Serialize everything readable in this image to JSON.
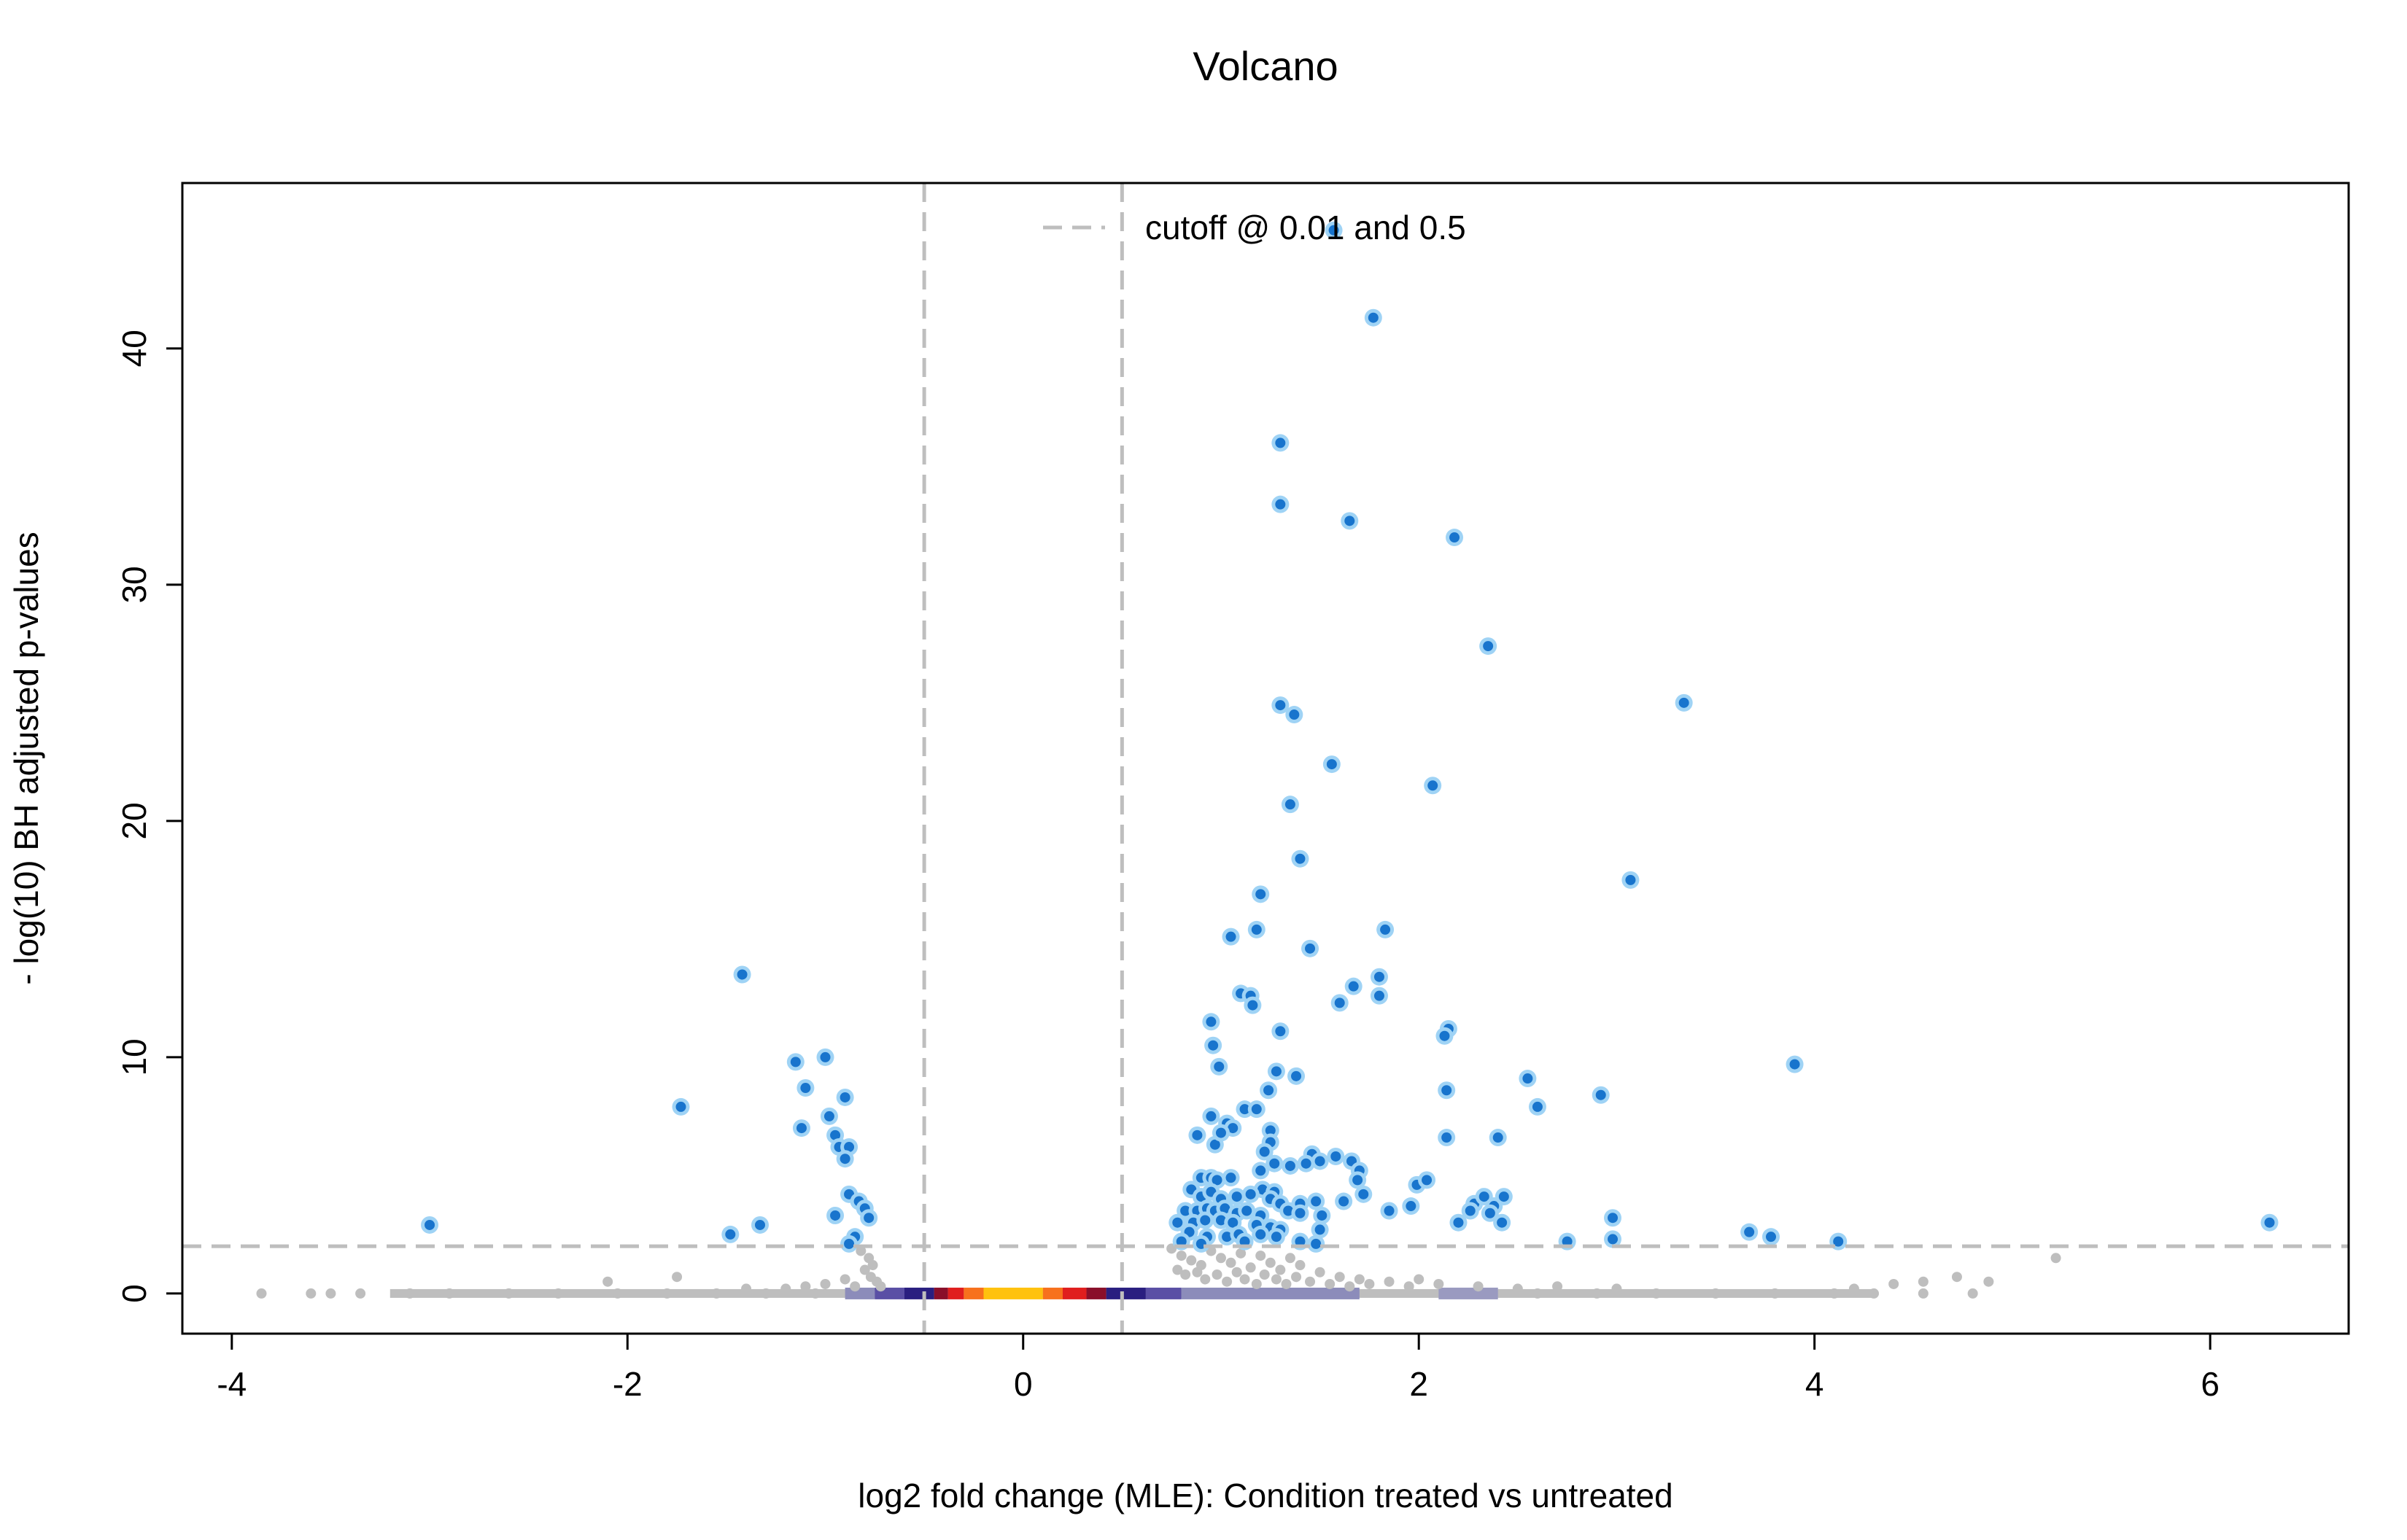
{
  "chart_data": {
    "type": "scatter",
    "title": "Volcano",
    "xlabel": "log2 fold change (MLE): Condition treated vs untreated",
    "ylabel": "- log(10) BH adjusted p-values",
    "xlim": [
      -4.25,
      6.7
    ],
    "ylim": [
      -1.7,
      47.0
    ],
    "xticks": [
      -4,
      -2,
      0,
      2,
      4,
      6
    ],
    "yticks": [
      0,
      10,
      20,
      30,
      40
    ],
    "x_tick_labels": [
      "-4",
      "-2",
      "0",
      "2",
      "4",
      "6"
    ],
    "y_tick_labels": [
      "0",
      "10",
      "20",
      "30",
      "40"
    ],
    "grid": false,
    "legend": {
      "position": "top",
      "entries": [
        {
          "label": "cutoff @ 0.01 and 0.5",
          "style": "dashed",
          "color": "#bebebe"
        }
      ]
    },
    "cutoffs": {
      "padj": 0.01,
      "y_line": 2.0,
      "lfc": [
        -0.5,
        0.5
      ]
    },
    "colors": {
      "significant_fill": "#1874cd",
      "significant_ring": "#9fd3f5",
      "nonsignificant": "#bebebe",
      "cutoff_line": "#bebebe",
      "density_low": "#8c8cba",
      "density_mid": "#3a2f8f",
      "density_high_red": "#c4161c",
      "density_peak": "#ffc20e"
    },
    "density_strip": [
      {
        "x0": -0.9,
        "x1": -0.75,
        "color": "#8c8cba"
      },
      {
        "x0": -0.75,
        "x1": -0.6,
        "color": "#5a4fa5"
      },
      {
        "x0": -0.6,
        "x1": -0.45,
        "color": "#2a1f80"
      },
      {
        "x0": -0.45,
        "x1": -0.38,
        "color": "#8a0f2a"
      },
      {
        "x0": -0.38,
        "x1": -0.3,
        "color": "#e01e1e"
      },
      {
        "x0": -0.3,
        "x1": -0.2,
        "color": "#f7711d"
      },
      {
        "x0": -0.2,
        "x1": 0.1,
        "color": "#ffc20e"
      },
      {
        "x0": 0.1,
        "x1": 0.2,
        "color": "#f7711d"
      },
      {
        "x0": 0.2,
        "x1": 0.32,
        "color": "#e01e1e"
      },
      {
        "x0": 0.32,
        "x1": 0.42,
        "color": "#8a0f2a"
      },
      {
        "x0": 0.42,
        "x1": 0.62,
        "color": "#2a1f80"
      },
      {
        "x0": 0.62,
        "x1": 0.8,
        "color": "#5a4fa5"
      },
      {
        "x0": 0.8,
        "x1": 1.7,
        "color": "#8c8cba"
      },
      {
        "x0": 2.1,
        "x1": 2.4,
        "color": "#9a9ac0"
      }
    ],
    "significant_points": [
      [
        -3.0,
        2.9
      ],
      [
        -1.73,
        7.9
      ],
      [
        -1.42,
        13.5
      ],
      [
        -1.48,
        2.5
      ],
      [
        -1.33,
        2.9
      ],
      [
        -1.15,
        9.8
      ],
      [
        -1.1,
        8.7
      ],
      [
        -1.12,
        7.0
      ],
      [
        -1.0,
        10.0
      ],
      [
        -0.98,
        7.5
      ],
      [
        -0.95,
        6.7
      ],
      [
        -0.9,
        8.3
      ],
      [
        -0.93,
        6.2
      ],
      [
        -0.88,
        6.2
      ],
      [
        -0.9,
        5.7
      ],
      [
        -0.88,
        4.2
      ],
      [
        -0.83,
        3.9
      ],
      [
        -0.95,
        3.3
      ],
      [
        -0.8,
        3.6
      ],
      [
        -0.85,
        2.4
      ],
      [
        -0.78,
        3.2
      ],
      [
        -0.88,
        2.1
      ],
      [
        1.3,
        36.0
      ],
      [
        1.3,
        33.4
      ],
      [
        1.57,
        45.0
      ],
      [
        1.77,
        41.3
      ],
      [
        1.65,
        32.7
      ],
      [
        2.18,
        32.0
      ],
      [
        2.35,
        27.4
      ],
      [
        1.3,
        24.9
      ],
      [
        1.37,
        24.5
      ],
      [
        3.34,
        25.0
      ],
      [
        1.56,
        22.4
      ],
      [
        2.07,
        21.5
      ],
      [
        1.35,
        20.7
      ],
      [
        1.4,
        18.4
      ],
      [
        3.07,
        17.5
      ],
      [
        1.2,
        16.9
      ],
      [
        1.18,
        15.4
      ],
      [
        1.05,
        15.1
      ],
      [
        1.83,
        15.4
      ],
      [
        1.45,
        14.6
      ],
      [
        1.8,
        13.4
      ],
      [
        1.67,
        13.0
      ],
      [
        1.1,
        12.7
      ],
      [
        1.15,
        12.6
      ],
      [
        1.16,
        12.2
      ],
      [
        1.6,
        12.3
      ],
      [
        1.8,
        12.6
      ],
      [
        0.95,
        11.5
      ],
      [
        1.3,
        11.1
      ],
      [
        2.15,
        11.2
      ],
      [
        2.13,
        10.9
      ],
      [
        0.96,
        10.5
      ],
      [
        0.99,
        9.6
      ],
      [
        1.28,
        9.4
      ],
      [
        1.38,
        9.2
      ],
      [
        1.24,
        8.6
      ],
      [
        2.14,
        8.6
      ],
      [
        2.55,
        9.1
      ],
      [
        2.92,
        8.4
      ],
      [
        3.9,
        9.7
      ],
      [
        2.6,
        7.9
      ],
      [
        1.12,
        7.8
      ],
      [
        1.18,
        7.8
      ],
      [
        0.95,
        7.5
      ],
      [
        1.03,
        7.2
      ],
      [
        1.06,
        7.0
      ],
      [
        1.25,
        6.9
      ],
      [
        0.88,
        6.7
      ],
      [
        1.25,
        6.4
      ],
      [
        0.97,
        6.3
      ],
      [
        2.14,
        6.6
      ],
      [
        2.4,
        6.6
      ],
      [
        1.0,
        6.8
      ],
      [
        1.22,
        6.0
      ],
      [
        1.46,
        5.9
      ],
      [
        1.58,
        5.8
      ],
      [
        1.27,
        5.5
      ],
      [
        1.35,
        5.4
      ],
      [
        1.43,
        5.5
      ],
      [
        1.5,
        5.6
      ],
      [
        1.66,
        5.6
      ],
      [
        1.7,
        5.2
      ],
      [
        1.2,
        5.2
      ],
      [
        0.9,
        4.9
      ],
      [
        0.95,
        4.9
      ],
      [
        0.98,
        4.8
      ],
      [
        1.05,
        4.9
      ],
      [
        1.21,
        4.4
      ],
      [
        1.27,
        4.3
      ],
      [
        1.69,
        4.8
      ],
      [
        1.99,
        4.6
      ],
      [
        2.04,
        4.8
      ],
      [
        0.85,
        4.4
      ],
      [
        0.9,
        4.1
      ],
      [
        0.95,
        4.3
      ],
      [
        1.0,
        4.0
      ],
      [
        1.08,
        4.1
      ],
      [
        1.15,
        4.2
      ],
      [
        1.25,
        4.0
      ],
      [
        1.3,
        3.8
      ],
      [
        1.4,
        3.8
      ],
      [
        1.48,
        3.9
      ],
      [
        1.62,
        3.9
      ],
      [
        1.72,
        4.2
      ],
      [
        2.28,
        3.8
      ],
      [
        2.33,
        4.1
      ],
      [
        2.38,
        3.7
      ],
      [
        2.43,
        4.1
      ],
      [
        0.82,
        3.5
      ],
      [
        0.88,
        3.5
      ],
      [
        0.93,
        3.6
      ],
      [
        0.97,
        3.5
      ],
      [
        1.02,
        3.6
      ],
      [
        1.08,
        3.4
      ],
      [
        1.13,
        3.5
      ],
      [
        1.2,
        3.3
      ],
      [
        1.34,
        3.5
      ],
      [
        1.4,
        3.4
      ],
      [
        1.51,
        3.3
      ],
      [
        1.85,
        3.5
      ],
      [
        1.96,
        3.7
      ],
      [
        2.26,
        3.5
      ],
      [
        2.36,
        3.4
      ],
      [
        0.78,
        3.0
      ],
      [
        0.86,
        3.0
      ],
      [
        0.92,
        3.1
      ],
      [
        1.0,
        3.1
      ],
      [
        1.06,
        3.0
      ],
      [
        1.18,
        2.9
      ],
      [
        1.25,
        2.8
      ],
      [
        1.3,
        2.7
      ],
      [
        2.2,
        3.0
      ],
      [
        2.42,
        3.0
      ],
      [
        2.98,
        3.2
      ],
      [
        6.3,
        3.0
      ],
      [
        0.84,
        2.6
      ],
      [
        0.93,
        2.4
      ],
      [
        1.03,
        2.4
      ],
      [
        1.09,
        2.5
      ],
      [
        1.2,
        2.5
      ],
      [
        1.28,
        2.4
      ],
      [
        1.5,
        2.7
      ],
      [
        2.75,
        2.2
      ],
      [
        2.98,
        2.3
      ],
      [
        3.67,
        2.6
      ],
      [
        3.78,
        2.4
      ],
      [
        4.12,
        2.2
      ],
      [
        0.8,
        2.2
      ],
      [
        0.9,
        2.1
      ],
      [
        1.12,
        2.2
      ],
      [
        1.4,
        2.2
      ],
      [
        1.48,
        2.1
      ]
    ],
    "nonsignificant_points": [
      [
        -0.82,
        1.8
      ],
      [
        -0.78,
        1.5
      ],
      [
        -0.76,
        1.2
      ],
      [
        -0.8,
        1.0
      ],
      [
        -0.77,
        0.7
      ],
      [
        -0.74,
        0.5
      ],
      [
        -0.9,
        0.6
      ],
      [
        -1.0,
        0.4
      ],
      [
        -1.1,
        0.3
      ],
      [
        -1.2,
        0.2
      ],
      [
        -0.85,
        0.3
      ],
      [
        -0.72,
        0.3
      ],
      [
        -1.75,
        0.7
      ],
      [
        -2.1,
        0.5
      ],
      [
        -1.4,
        0.2
      ],
      [
        0.75,
        1.9
      ],
      [
        0.8,
        1.6
      ],
      [
        0.85,
        1.4
      ],
      [
        0.9,
        1.2
      ],
      [
        0.95,
        1.8
      ],
      [
        1.0,
        1.5
      ],
      [
        1.05,
        1.3
      ],
      [
        1.1,
        1.7
      ],
      [
        1.15,
        1.1
      ],
      [
        1.2,
        1.6
      ],
      [
        1.25,
        1.3
      ],
      [
        1.3,
        1.0
      ],
      [
        1.35,
        1.5
      ],
      [
        1.4,
        1.2
      ],
      [
        0.78,
        1.0
      ],
      [
        0.82,
        0.8
      ],
      [
        0.88,
        0.9
      ],
      [
        0.92,
        0.6
      ],
      [
        0.98,
        0.8
      ],
      [
        1.03,
        0.5
      ],
      [
        1.08,
        0.9
      ],
      [
        1.12,
        0.6
      ],
      [
        1.18,
        0.4
      ],
      [
        1.22,
        0.8
      ],
      [
        1.28,
        0.6
      ],
      [
        1.33,
        0.4
      ],
      [
        1.38,
        0.7
      ],
      [
        1.45,
        0.5
      ],
      [
        1.5,
        0.9
      ],
      [
        1.55,
        0.4
      ],
      [
        1.6,
        0.7
      ],
      [
        1.65,
        0.3
      ],
      [
        1.7,
        0.6
      ],
      [
        1.75,
        0.4
      ],
      [
        1.85,
        0.5
      ],
      [
        1.95,
        0.3
      ],
      [
        2.0,
        0.6
      ],
      [
        2.1,
        0.4
      ],
      [
        2.3,
        0.3
      ],
      [
        2.5,
        0.2
      ],
      [
        2.7,
        0.3
      ],
      [
        3.0,
        0.2
      ],
      [
        4.2,
        0.2
      ],
      [
        4.4,
        0.4
      ],
      [
        4.55,
        0.5
      ],
      [
        4.72,
        0.7
      ],
      [
        4.88,
        0.5
      ],
      [
        5.22,
        1.5
      ],
      [
        -3.85,
        0.0
      ],
      [
        -3.6,
        0.0
      ],
      [
        -3.5,
        0.0
      ],
      [
        -3.35,
        0.0
      ],
      [
        -3.1,
        0.0
      ],
      [
        -2.9,
        0.0
      ],
      [
        -2.6,
        0.0
      ],
      [
        -2.35,
        0.0
      ],
      [
        -2.05,
        0.0
      ],
      [
        -1.8,
        0.0
      ],
      [
        -1.55,
        0.0
      ],
      [
        -1.3,
        0.0
      ],
      [
        -1.05,
        0.0
      ],
      [
        2.6,
        0.0
      ],
      [
        2.9,
        0.0
      ],
      [
        3.2,
        0.0
      ],
      [
        3.5,
        0.0
      ],
      [
        3.8,
        0.0
      ],
      [
        4.1,
        0.0
      ],
      [
        4.3,
        0.0
      ],
      [
        4.55,
        0.0
      ],
      [
        4.8,
        0.0
      ]
    ],
    "baseline_band": {
      "x0": -3.2,
      "x1": 4.3,
      "y": 0.0
    }
  }
}
